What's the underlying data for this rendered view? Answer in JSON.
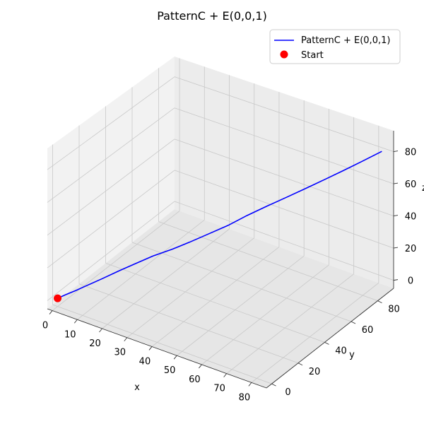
{
  "chart_data": {
    "type": "line3d",
    "title": "PatternC + E(0,0,1)",
    "xlabel": "x",
    "ylabel": "y",
    "zlabel": "z",
    "xlim": [
      -2,
      86
    ],
    "ylim": [
      -4,
      92
    ],
    "zlim": [
      -5,
      93
    ],
    "xticks": [
      0,
      10,
      20,
      30,
      40,
      50,
      60,
      70,
      80
    ],
    "yticks": [
      0,
      20,
      40,
      60,
      80
    ],
    "zticks": [
      0,
      20,
      40,
      60,
      80
    ],
    "grid": true,
    "legend_position": "top-right",
    "series": [
      {
        "name": "PatternC + E(0,0,1)",
        "color": "#0000ff",
        "kind": "line",
        "x": [
          0,
          2,
          5,
          8,
          12,
          16,
          20,
          25,
          30,
          35,
          40,
          45,
          50,
          55,
          60,
          65,
          70,
          75,
          80,
          85
        ],
        "y": [
          0,
          2,
          4,
          7,
          11,
          16,
          20,
          25,
          30,
          34,
          39,
          44,
          49,
          55,
          60,
          65,
          70,
          75,
          80,
          85
        ],
        "z": [
          0,
          2,
          5,
          8,
          12,
          16,
          20,
          25,
          29,
          34,
          39,
          44,
          50,
          55,
          60,
          65,
          70,
          75,
          80,
          85
        ]
      },
      {
        "name": "Start",
        "color": "#ff0000",
        "kind": "point",
        "x": [
          0
        ],
        "y": [
          0
        ],
        "z": [
          0
        ]
      }
    ]
  }
}
